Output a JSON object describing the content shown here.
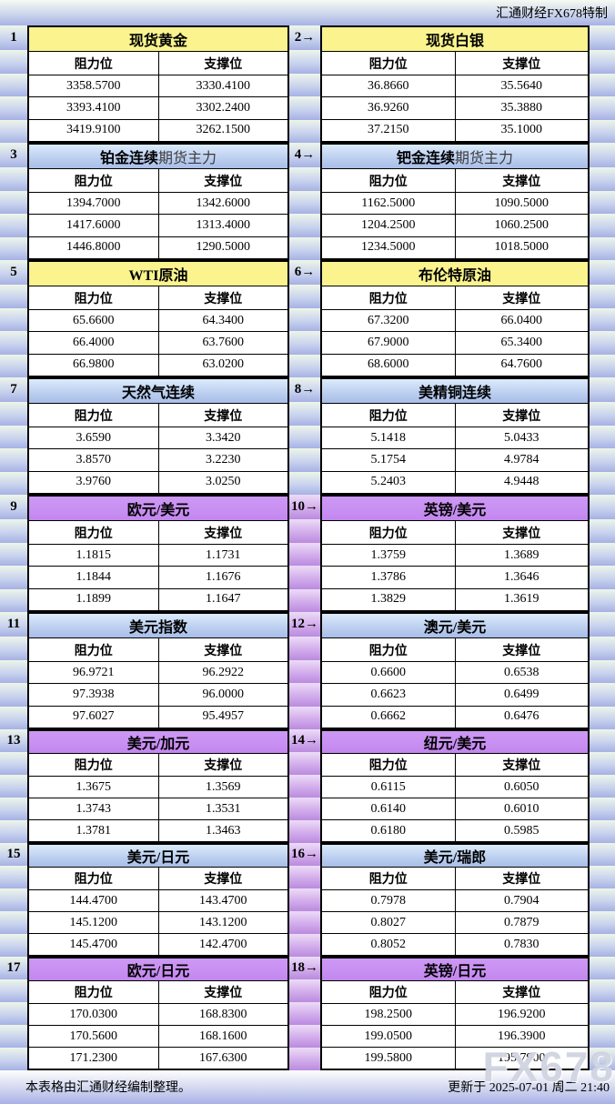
{
  "header": {
    "brand": "汇通财经FX678特制"
  },
  "table": {
    "col_resistance": "阻力位",
    "col_support": "支撑位",
    "arrow_glyph": "→",
    "panels": [
      {
        "num": "1",
        "title": "现货黄金",
        "title_suffix": "",
        "color": "yellow",
        "rows": [
          [
            "3358.5700",
            "3330.4100"
          ],
          [
            "3393.4100",
            "3302.2400"
          ],
          [
            "3419.9100",
            "3262.1500"
          ]
        ]
      },
      {
        "num": "2",
        "title": "现货白银",
        "title_suffix": "",
        "color": "yellow",
        "rows": [
          [
            "36.8660",
            "35.5640"
          ],
          [
            "36.9260",
            "35.3880"
          ],
          [
            "37.2150",
            "35.1000"
          ]
        ]
      },
      {
        "num": "3",
        "title": "铂金连续",
        "title_suffix": "期货主力",
        "color": "blue",
        "rows": [
          [
            "1394.7000",
            "1342.6000"
          ],
          [
            "1417.6000",
            "1313.4000"
          ],
          [
            "1446.8000",
            "1290.5000"
          ]
        ]
      },
      {
        "num": "4",
        "title": "钯金连续",
        "title_suffix": "期货主力",
        "color": "blue",
        "rows": [
          [
            "1162.5000",
            "1090.5000"
          ],
          [
            "1204.2500",
            "1060.2500"
          ],
          [
            "1234.5000",
            "1018.5000"
          ]
        ]
      },
      {
        "num": "5",
        "title": "WTI原油",
        "title_suffix": "",
        "color": "yellow",
        "rows": [
          [
            "65.6600",
            "64.3400"
          ],
          [
            "66.4000",
            "63.7600"
          ],
          [
            "66.9800",
            "63.0200"
          ]
        ]
      },
      {
        "num": "6",
        "title": "布伦特原油",
        "title_suffix": "",
        "color": "yellow",
        "rows": [
          [
            "67.3200",
            "66.0400"
          ],
          [
            "67.9000",
            "65.3400"
          ],
          [
            "68.6000",
            "64.7600"
          ]
        ]
      },
      {
        "num": "7",
        "title": "天然气连续",
        "title_suffix": "",
        "color": "blue",
        "rows": [
          [
            "3.6590",
            "3.3420"
          ],
          [
            "3.8570",
            "3.2230"
          ],
          [
            "3.9760",
            "3.0250"
          ]
        ]
      },
      {
        "num": "8",
        "title": "美精铜连续",
        "title_suffix": "",
        "color": "blue",
        "rows": [
          [
            "5.1418",
            "5.0433"
          ],
          [
            "5.1754",
            "4.9784"
          ],
          [
            "5.2403",
            "4.9448"
          ]
        ]
      },
      {
        "num": "9",
        "title": "欧元/美元",
        "title_suffix": "",
        "color": "purple",
        "rows": [
          [
            "1.1815",
            "1.1731"
          ],
          [
            "1.1844",
            "1.1676"
          ],
          [
            "1.1899",
            "1.1647"
          ]
        ]
      },
      {
        "num": "10",
        "title": "英镑/美元",
        "title_suffix": "",
        "color": "purple",
        "rows": [
          [
            "1.3759",
            "1.3689"
          ],
          [
            "1.3786",
            "1.3646"
          ],
          [
            "1.3829",
            "1.3619"
          ]
        ]
      },
      {
        "num": "11",
        "title": "美元指数",
        "title_suffix": "",
        "color": "blue",
        "rows": [
          [
            "96.9721",
            "96.2922"
          ],
          [
            "97.3938",
            "96.0000"
          ],
          [
            "97.6027",
            "95.4957"
          ]
        ]
      },
      {
        "num": "12",
        "title": "澳元/美元",
        "title_suffix": "",
        "color": "blue",
        "rows": [
          [
            "0.6600",
            "0.6538"
          ],
          [
            "0.6623",
            "0.6499"
          ],
          [
            "0.6662",
            "0.6476"
          ]
        ]
      },
      {
        "num": "13",
        "title": "美元/加元",
        "title_suffix": "",
        "color": "purple",
        "rows": [
          [
            "1.3675",
            "1.3569"
          ],
          [
            "1.3743",
            "1.3531"
          ],
          [
            "1.3781",
            "1.3463"
          ]
        ]
      },
      {
        "num": "14",
        "title": "纽元/美元",
        "title_suffix": "",
        "color": "purple",
        "rows": [
          [
            "0.6115",
            "0.6050"
          ],
          [
            "0.6140",
            "0.6010"
          ],
          [
            "0.6180",
            "0.5985"
          ]
        ]
      },
      {
        "num": "15",
        "title": "美元/日元",
        "title_suffix": "",
        "color": "blue",
        "rows": [
          [
            "144.4700",
            "143.4700"
          ],
          [
            "145.1200",
            "143.1200"
          ],
          [
            "145.4700",
            "142.4700"
          ]
        ]
      },
      {
        "num": "16",
        "title": "美元/瑞郎",
        "title_suffix": "",
        "color": "blue",
        "rows": [
          [
            "0.7978",
            "0.7904"
          ],
          [
            "0.8027",
            "0.7879"
          ],
          [
            "0.8052",
            "0.7830"
          ]
        ]
      },
      {
        "num": "17",
        "title": "欧元/日元",
        "title_suffix": "",
        "color": "purple",
        "rows": [
          [
            "170.0300",
            "168.8300"
          ],
          [
            "170.5600",
            "168.1600"
          ],
          [
            "171.2300",
            "167.6300"
          ]
        ]
      },
      {
        "num": "18",
        "title": "英镑/日元",
        "title_suffix": "",
        "color": "purple",
        "rows": [
          [
            "198.2500",
            "196.9200"
          ],
          [
            "199.0500",
            "196.3900"
          ],
          [
            "199.5800",
            "195.7900"
          ]
        ]
      }
    ]
  },
  "footer": {
    "left": "本表格由汇通财经编制整理。",
    "updated": "更新于 2025-07-01 周二 21:40",
    "watermark": "FX678"
  },
  "colors": {
    "header_yellow": "#FAF38E",
    "header_blue": "#A8BEE8",
    "header_purple": "#C88FF2",
    "band_blue": "#A6B1E4",
    "band_purple": "#BA8BDF",
    "page_background": "#D9E4E0"
  }
}
